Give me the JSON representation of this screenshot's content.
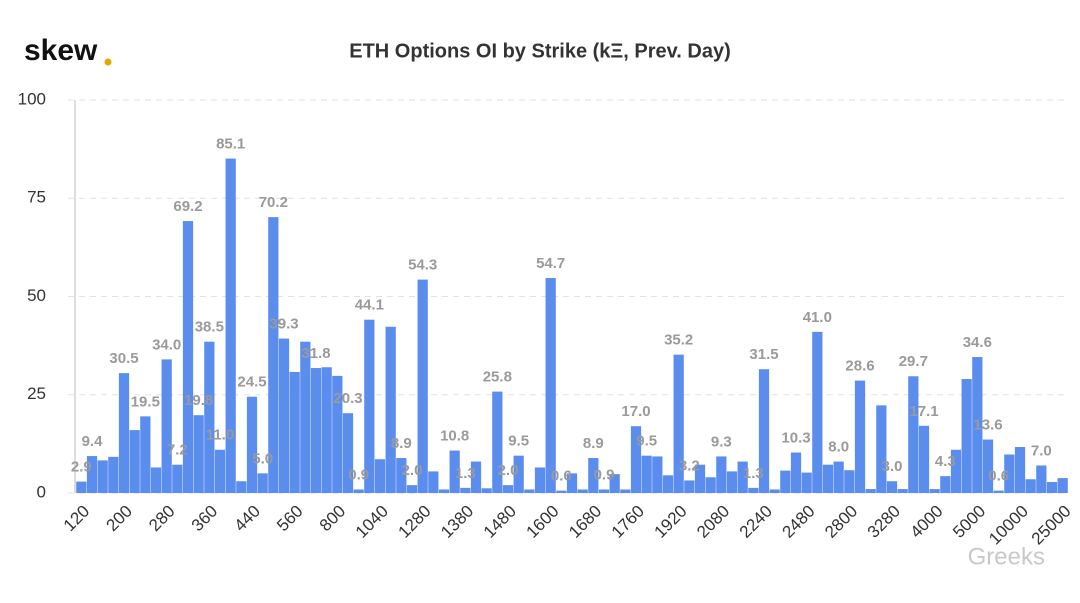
{
  "logo": "skew",
  "watermark": "Greeks",
  "chart_data": {
    "type": "bar",
    "title": "ETH Options OI by Strike (kΞ, Prev. Day)",
    "color": "#5b8def",
    "grid": true,
    "ylim": [
      0,
      100
    ],
    "yticks": [
      0,
      25,
      50,
      75,
      100
    ],
    "categories": [
      "120",
      null,
      null,
      null,
      "200",
      null,
      null,
      null,
      "280",
      null,
      null,
      null,
      "360",
      null,
      null,
      null,
      "440",
      null,
      null,
      null,
      "560",
      null,
      null,
      null,
      "800",
      null,
      null,
      null,
      "1040",
      null,
      null,
      null,
      "1280",
      null,
      null,
      null,
      "1380",
      null,
      null,
      null,
      "1480",
      null,
      null,
      null,
      "1600",
      null,
      null,
      null,
      "1680",
      null,
      null,
      null,
      "1760",
      null,
      null,
      null,
      "1920",
      null,
      null,
      null,
      "2080",
      null,
      null,
      null,
      "2240",
      null,
      null,
      null,
      "2480",
      null,
      null,
      null,
      "2800",
      null,
      null,
      null,
      "3280",
      null,
      null,
      null,
      "4000",
      null,
      null,
      null,
      "5000",
      null,
      null,
      null,
      "10000",
      null,
      null,
      null,
      "25000"
    ],
    "values": [
      2.9,
      9.4,
      8.3,
      9.2,
      30.5,
      16,
      19.5,
      6.5,
      34.0,
      7.2,
      69.2,
      19.8,
      38.5,
      11.0,
      85.1,
      3,
      24.5,
      5.0,
      70.2,
      39.3,
      30.8,
      38.5,
      31.8,
      32,
      29.8,
      20.3,
      0.9,
      44.1,
      8.6,
      42.3,
      8.9,
      2.0,
      54.3,
      5.5,
      0.9,
      10.8,
      1.3,
      8,
      1.2,
      25.8,
      2.0,
      9.5,
      0.9,
      6.5,
      54.7,
      0.6,
      5,
      0.9,
      8.9,
      0.9,
      4.8,
      0.9,
      17.0,
      9.5,
      9.3,
      4.5,
      35.2,
      3.2,
      7.2,
      4,
      9.3,
      5.5,
      8,
      1.3,
      31.5,
      0.9,
      5.7,
      10.3,
      5.2,
      41.0,
      7.2,
      8.0,
      5.8,
      28.6,
      1,
      22.3,
      3.0,
      1,
      29.7,
      17.1,
      1,
      4.3,
      11,
      29,
      34.6,
      13.6,
      0.6,
      9.8,
      11.7,
      3.5,
      7.0,
      2.8,
      3.8
    ],
    "value_labels": [
      "2.9",
      "9.4",
      null,
      null,
      "30.5",
      null,
      "19.5",
      null,
      "34.0",
      "7.2",
      "69.2",
      "19.8",
      "38.5",
      "11.0",
      "85.1",
      null,
      "24.5",
      "5.0",
      "70.2",
      "39.3",
      null,
      null,
      "31.8",
      null,
      null,
      "20.3",
      "0.9",
      "44.1",
      null,
      null,
      "8.9",
      "2.0",
      "54.3",
      null,
      null,
      "10.8",
      "1.3",
      null,
      null,
      "25.8",
      "2.0",
      "9.5",
      null,
      null,
      "54.7",
      "0.6",
      null,
      null,
      "8.9",
      "0.9",
      null,
      null,
      "17.0",
      "9.5",
      null,
      null,
      "35.2",
      "3.2",
      null,
      null,
      "9.3",
      null,
      null,
      "1.3",
      "31.5",
      null,
      null,
      "10.3",
      null,
      "41.0",
      null,
      "8.0",
      null,
      "28.6",
      null,
      null,
      "3.0",
      null,
      "29.7",
      "17.1",
      null,
      "4.3",
      null,
      null,
      "34.6",
      "13.6",
      "0.6",
      null,
      null,
      null,
      "7.0",
      null,
      null
    ]
  }
}
